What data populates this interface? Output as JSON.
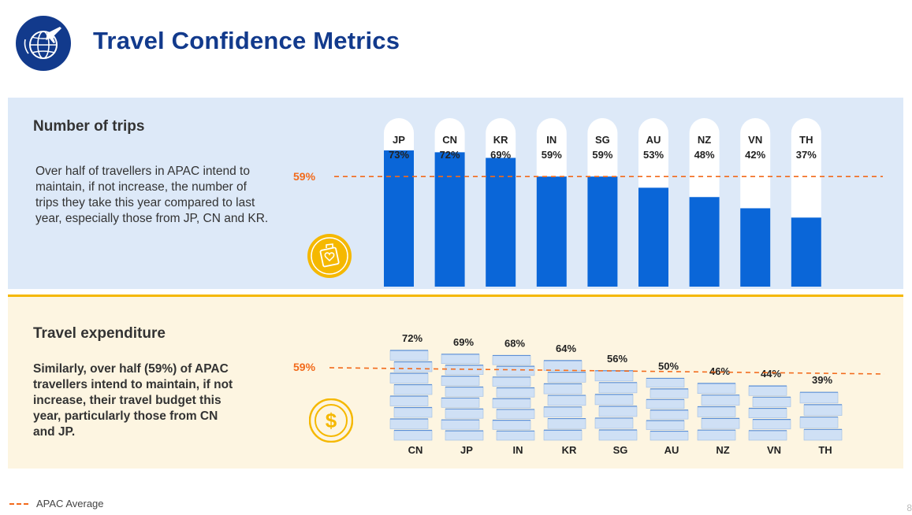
{
  "header": {
    "title": "Travel Confidence Metrics"
  },
  "trips": {
    "heading": "Number of trips",
    "description": "Over half of travellers in APAC intend to maintain, if not increase, the number of trips they take this year compared to last year, especially those from JP, CN and KR.",
    "average_label": "59%"
  },
  "expenditure": {
    "heading": "Travel expenditure",
    "description": "Similarly, over half (59%) of APAC travellers intend to maintain, if not increase, their travel budget this year, particularly those from CN and JP.",
    "average_label": "59%"
  },
  "legend": {
    "label": "APAC Average"
  },
  "page_number": "8",
  "colors": {
    "title": "#123a8c",
    "bar": "#0a66d8",
    "average": "#f26a1b",
    "accent": "#f5b800",
    "stack": "#cfe0f5"
  },
  "icons": {
    "logo": "globe-plane-icon",
    "trips_badge": "luggage-heart-icon",
    "spend_badge": "dollar-coin-icon"
  },
  "chart_data": [
    {
      "type": "bar",
      "id": "trips",
      "categories": [
        "JP",
        "CN",
        "KR",
        "IN",
        "SG",
        "AU",
        "NZ",
        "VN",
        "TH"
      ],
      "values": [
        73,
        72,
        69,
        59,
        59,
        53,
        48,
        42,
        37
      ],
      "value_labels": [
        "73%",
        "72%",
        "69%",
        "59%",
        "59%",
        "53%",
        "48%",
        "42%",
        "37%"
      ],
      "ylim": [
        0,
        100
      ],
      "average": 59,
      "grid": false
    },
    {
      "type": "bar",
      "id": "expenditure",
      "categories": [
        "CN",
        "JP",
        "IN",
        "KR",
        "SG",
        "AU",
        "NZ",
        "VN",
        "TH"
      ],
      "values": [
        72,
        69,
        68,
        64,
        56,
        50,
        46,
        44,
        39
      ],
      "value_labels": [
        "72%",
        "69%",
        "68%",
        "64%",
        "56%",
        "50%",
        "46%",
        "44%",
        "39%"
      ],
      "ylim": [
        0,
        100
      ],
      "average": 59,
      "grid": false
    }
  ]
}
